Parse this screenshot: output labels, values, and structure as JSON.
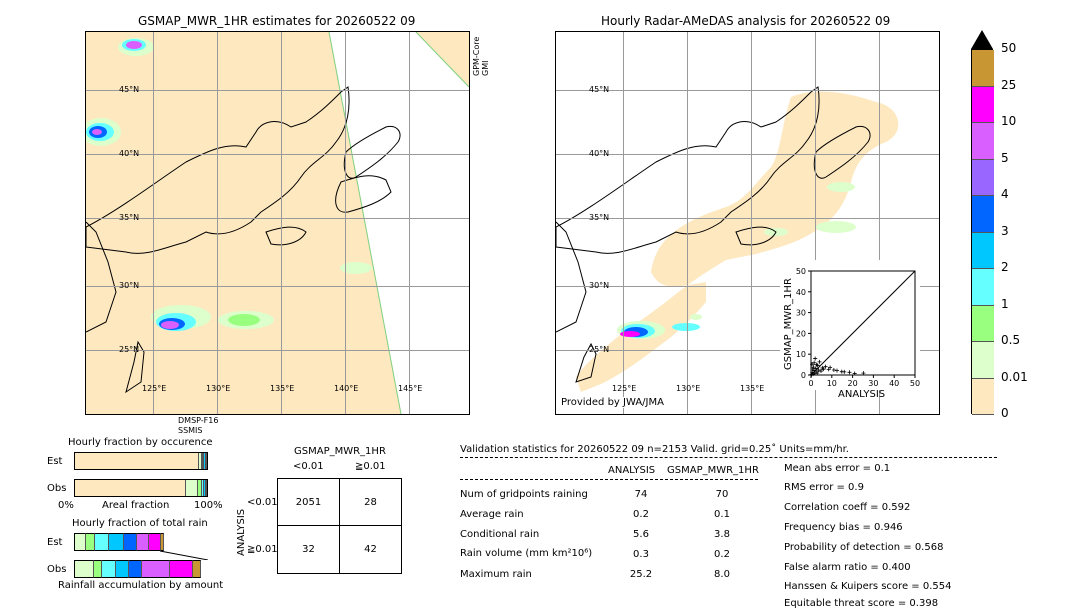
{
  "left_panel": {
    "title": "GSMAP_MWR_1HR estimates for 20260522 09",
    "sensor_top": "GPM-Core\nGMI",
    "sensor_top_1": "GPM-Core",
    "sensor_top_2": "GMI",
    "sensor_bottom_1": "DMSP-F16",
    "sensor_bottom_2": "SSMIS",
    "lat_labels": [
      "45°N",
      "40°N",
      "35°N",
      "30°N",
      "25°N"
    ],
    "lon_labels": [
      "125°E",
      "130°E",
      "135°E",
      "140°E",
      "145°E"
    ]
  },
  "right_panel": {
    "title": "Hourly Radar-AMeDAS analysis for 20260522 09",
    "credit": "Provided by JWA/JMA",
    "lat_labels": [
      "45°N",
      "40°N",
      "35°N",
      "30°N",
      "25°N"
    ],
    "lon_labels": [
      "125°E",
      "130°E",
      "135°E"
    ]
  },
  "colorbar": {
    "labels": [
      "50",
      "25",
      "10",
      "5",
      "4",
      "3",
      "2",
      "1",
      "0.5",
      "0.01",
      "0"
    ],
    "colors": [
      "#c89632",
      "#ff00ff",
      "#d960ff",
      "#9966ff",
      "#0066ff",
      "#00c8ff",
      "#66ffff",
      "#99ff7f",
      "#ddffcc",
      "#fde8c0"
    ],
    "extend_color": "#000000"
  },
  "chart_data": [
    {
      "type": "scatter",
      "title": "",
      "xlabel": "ANALYSIS",
      "ylabel": "GSMAP_MWR_1HR",
      "xlim": [
        0,
        50
      ],
      "ylim": [
        0,
        50
      ],
      "xticks": [
        "0",
        "10",
        "20",
        "30",
        "40",
        "50"
      ],
      "yticks": [
        "0",
        "10",
        "20",
        "30",
        "40",
        "50"
      ],
      "points": [
        [
          0.3,
          0.2
        ],
        [
          0.6,
          1.1
        ],
        [
          1.0,
          0.4
        ],
        [
          1.4,
          2.2
        ],
        [
          1.9,
          0.8
        ],
        [
          2.3,
          3.1
        ],
        [
          2.8,
          1.5
        ],
        [
          3.2,
          4.6
        ],
        [
          0.5,
          5.2
        ],
        [
          1.2,
          3.8
        ],
        [
          3.6,
          2.4
        ],
        [
          4.1,
          6.3
        ],
        [
          4.8,
          1.9
        ],
        [
          5.5,
          3.4
        ],
        [
          6.0,
          2.8
        ],
        [
          2.0,
          7.9
        ],
        [
          1.5,
          5.9
        ],
        [
          3.0,
          0.9
        ],
        [
          7.0,
          4.0
        ],
        [
          8.5,
          2.7
        ],
        [
          9.2,
          3.6
        ],
        [
          11.0,
          2.4
        ],
        [
          12.5,
          2.1
        ],
        [
          14.8,
          1.6
        ],
        [
          16.0,
          1.5
        ],
        [
          18.5,
          1.3
        ],
        [
          21.0,
          0.7
        ],
        [
          25.2,
          0.9
        ],
        [
          0.8,
          2.9
        ],
        [
          2.6,
          5.0
        ]
      ],
      "diagonal": true
    },
    {
      "type": "bar",
      "title": "Hourly fraction by occurence",
      "xlabel": "Areal fraction",
      "tick_left": "0%",
      "tick_right": "100%",
      "categories": [
        "Est",
        "Obs"
      ],
      "series": [
        {
          "category": "Est",
          "fractions": [
            0.94,
            0.02,
            0.01,
            0.01,
            0.01,
            0.01
          ]
        },
        {
          "category": "Obs",
          "fractions": [
            0.84,
            0.09,
            0.03,
            0.02,
            0.01,
            0.01
          ]
        }
      ],
      "colors": [
        "#fde8c0",
        "#ddffcc",
        "#99ff7f",
        "#66ffff",
        "#00c8ff",
        "#0066ff"
      ]
    },
    {
      "type": "bar",
      "title": "Hourly fraction of total rain",
      "xlabel": "Rainfall accumulation by amount",
      "categories": [
        "Est",
        "Obs"
      ],
      "series": [
        {
          "category": "Est",
          "fractions": [
            0.09,
            0.07,
            0.1,
            0.11,
            0.1,
            0.09,
            0.09,
            0.02
          ]
        },
        {
          "category": "Obs",
          "fractions": [
            0.15,
            0.06,
            0.1,
            0.1,
            0.1,
            0.21,
            0.17,
            0.06
          ]
        }
      ],
      "colors": [
        "#ddffcc",
        "#99ff7f",
        "#66ffff",
        "#00c8ff",
        "#0066ff",
        "#d960ff",
        "#ff00ff",
        "#c89632"
      ]
    }
  ],
  "contingency": {
    "title": "GSMAP_MWR_1HR",
    "col_headers": [
      "<0.01",
      "≧0.01"
    ],
    "row_axis": "ANALYSIS",
    "row_headers": [
      "<0.01",
      "≧0.01"
    ],
    "cells": [
      [
        "2051",
        "28"
      ],
      [
        "32",
        "42"
      ]
    ]
  },
  "validation": {
    "header": "Validation statistics for 20260522 09  n=2153 Valid. grid=0.25˚ Units=mm/hr.",
    "col_analysis": "ANALYSIS",
    "col_gsmap": "GSMAP_MWR_1HR",
    "rows": [
      {
        "label": "Num of gridpoints raining",
        "analysis": "74",
        "gsmap": "70"
      },
      {
        "label": "Average rain",
        "analysis": "0.2",
        "gsmap": "0.1"
      },
      {
        "label": "Conditional rain",
        "analysis": "5.6",
        "gsmap": "3.8"
      },
      {
        "label": "Rain volume (mm km²10⁶)",
        "analysis": "0.3",
        "gsmap": "0.2"
      },
      {
        "label": "Maximum rain",
        "analysis": "25.2",
        "gsmap": "8.0"
      }
    ],
    "scores": [
      "Mean abs error =    0.1",
      "RMS error =    0.9",
      "Correlation coeff =  0.592",
      "Frequency bias =  0.946",
      "Probability of detection =  0.568",
      "False alarm ratio =  0.400",
      "Hanssen & Kuipers score =  0.554",
      "Equitable threat score =  0.398"
    ]
  }
}
